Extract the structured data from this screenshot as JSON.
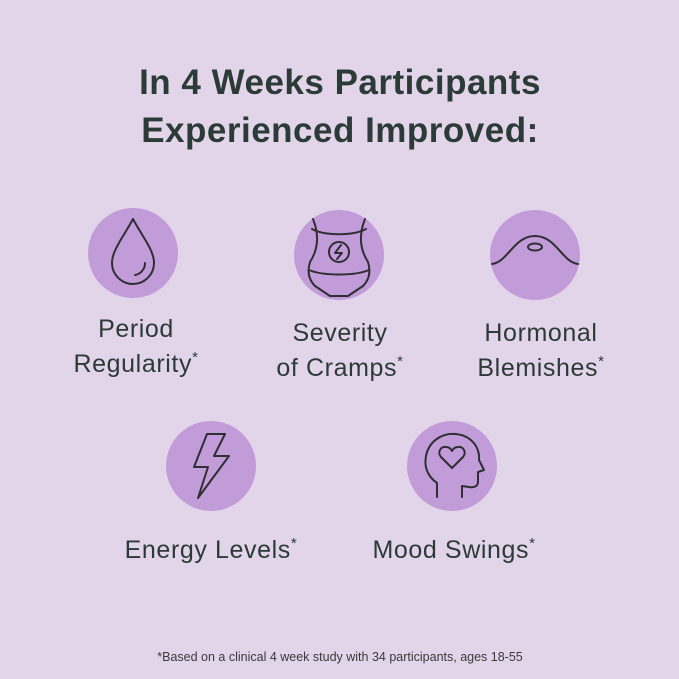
{
  "title": {
    "lines": [
      "In 4 Weeks Participants",
      "Experienced Improved:"
    ]
  },
  "items": [
    {
      "lines": [
        "Period",
        "Regularity"
      ],
      "marker": "*"
    },
    {
      "lines": [
        "Severity",
        "of Cramps"
      ],
      "marker": "*"
    },
    {
      "lines": [
        "Hormonal",
        "Blemishes"
      ],
      "marker": "*"
    },
    {
      "lines": [
        "Energy Levels"
      ],
      "marker": "*"
    },
    {
      "lines": [
        "Mood Swings"
      ],
      "marker": "*"
    }
  ],
  "footnote": "*Based on a clinical 4 week study with 34 participants, ages 18-55"
}
